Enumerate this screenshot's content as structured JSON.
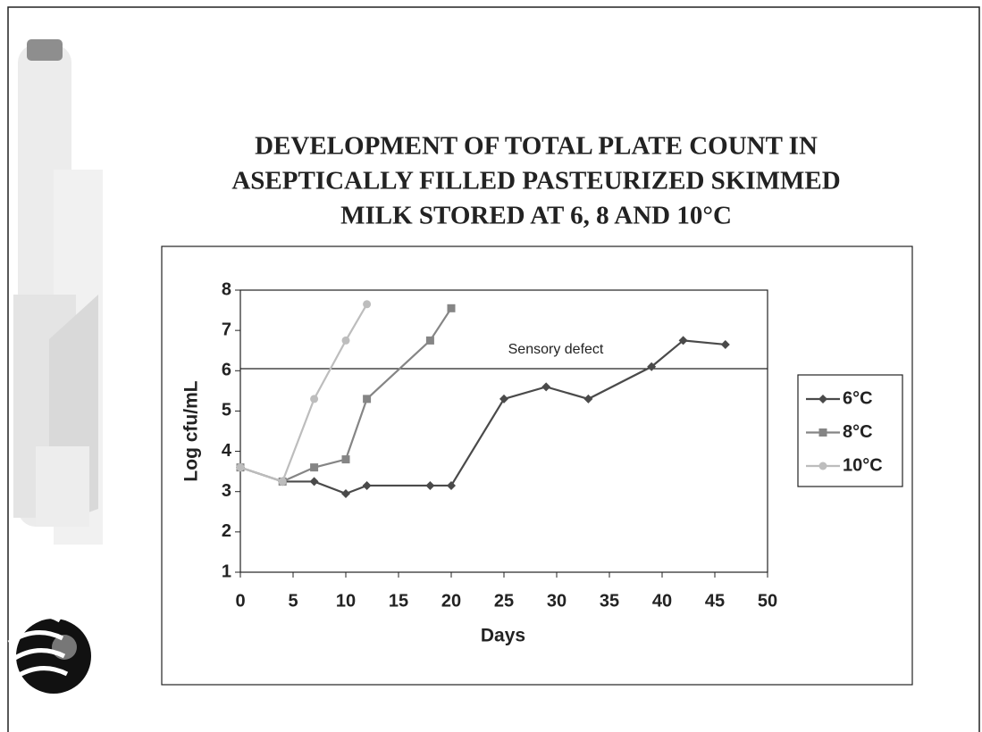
{
  "chart_data": {
    "type": "line",
    "title_lines": [
      "DEVELOPMENT OF TOTAL PLATE COUNT IN",
      "ASEPTICALLY FILLED PASTEURIZED SKIMMED",
      "MILK STORED AT 6, 8 AND 10°C"
    ],
    "x_label": "Days",
    "y_label": "Log cfu/mL",
    "xlim": [
      0,
      50
    ],
    "xticks": [
      0,
      5,
      10,
      15,
      20,
      25,
      30,
      35,
      40,
      45,
      50
    ],
    "ylim": [
      1,
      8
    ],
    "yticks": [
      1,
      2,
      3,
      4,
      5,
      6,
      7,
      8
    ],
    "threshold": {
      "value": 6.05,
      "label": "Sensory defect"
    },
    "legend_position": "right",
    "series": [
      {
        "name": "6°C",
        "color": "#4a4a4a",
        "marker": "diamond",
        "x": [
          0,
          4,
          7,
          10,
          12,
          18,
          20,
          25,
          29,
          33,
          39,
          42,
          46
        ],
        "values": [
          3.6,
          3.25,
          3.25,
          2.95,
          3.15,
          3.15,
          3.15,
          5.3,
          5.6,
          5.3,
          6.1,
          6.75,
          6.65
        ]
      },
      {
        "name": "8°C",
        "color": "#858585",
        "marker": "square",
        "x": [
          0,
          4,
          7,
          10,
          12,
          18,
          20
        ],
        "values": [
          3.6,
          3.25,
          3.6,
          3.8,
          5.3,
          6.75,
          7.55
        ]
      },
      {
        "name": "10°C",
        "color": "#bdbdbd",
        "marker": "circle",
        "x": [
          0,
          4,
          7,
          10,
          12
        ],
        "values": [
          3.6,
          3.25,
          5.3,
          6.75,
          7.65
        ]
      }
    ]
  }
}
